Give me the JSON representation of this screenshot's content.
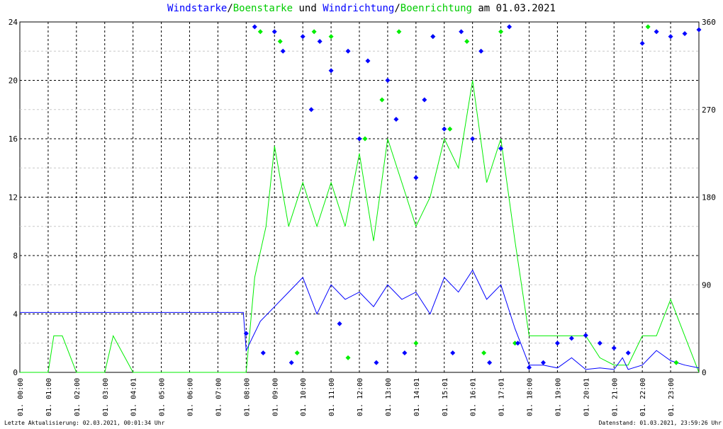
{
  "title": {
    "part1": "Windstarke",
    "sep1": "/",
    "part2": "Boenstarke",
    "mid": " und ",
    "part3": "Windrichtung",
    "sep2": "/",
    "part4": "Boenrichtung",
    "tail": " am 01.03.2021"
  },
  "colors": {
    "speed": "#0000ff",
    "gust": "#00ee00",
    "grid": "#000000",
    "dashed_grid": "#c8c8c8",
    "background": "#ffffff"
  },
  "footer": {
    "left": "Letzte Aktualisierung: 02.03.2021, 00:01:34 Uhr",
    "right": "Datenstand: 01.03.2021, 23:59:26 Uhr"
  },
  "chart_data": {
    "type": "line",
    "x_label_values": [
      "01. 00:00",
      "01. 01:00",
      "01. 02:00",
      "01. 03:00",
      "01. 04:01",
      "01. 05:00",
      "01. 06:00",
      "01. 07:00",
      "01. 08:00",
      "01. 09:00",
      "01. 10:00",
      "01. 11:00",
      "01. 12:00",
      "01. 13:00",
      "01. 14:01",
      "01. 15:01",
      "01. 16:01",
      "01. 17:01",
      "01. 18:00",
      "01. 19:00",
      "01. 20:01",
      "01. 21:00",
      "01. 22:00",
      "01. 23:00"
    ],
    "xlim_hours": [
      0,
      24
    ],
    "y_left_ticks": [
      0,
      4,
      8,
      12,
      16,
      20,
      24
    ],
    "y_left_lim": [
      0,
      24
    ],
    "y_right_ticks": [
      0,
      90,
      180,
      270,
      360
    ],
    "y_right_lim": [
      0,
      360
    ],
    "grid": true,
    "series": [
      {
        "name": "Windstarke",
        "axis": "left",
        "x_hours": [
          0,
          1,
          2,
          3,
          4,
          5,
          6,
          7,
          7.9,
          8.0,
          8.5,
          9,
          9.5,
          10,
          10.5,
          11,
          11.5,
          12,
          12.5,
          13,
          13.5,
          14,
          14.5,
          15,
          15.5,
          16,
          16.5,
          17,
          17.5,
          17.9,
          18,
          18.5,
          19,
          19.5,
          20,
          20.5,
          21,
          21.3,
          21.5,
          22,
          22.5,
          23,
          23.5,
          24
        ],
        "values": [
          4.1,
          4.1,
          4.1,
          4.1,
          4.1,
          4.1,
          4.1,
          4.1,
          4.1,
          1.5,
          3.5,
          4.5,
          5.5,
          6.5,
          4.0,
          6.0,
          5.0,
          5.5,
          4.5,
          6.0,
          5.0,
          5.5,
          4.0,
          6.5,
          5.5,
          7.0,
          5.0,
          6.0,
          3.0,
          1.0,
          0.5,
          0.5,
          0.3,
          1.0,
          0.2,
          0.3,
          0.2,
          1.0,
          0.2,
          0.5,
          1.5,
          0.8,
          0.5,
          0.3
        ]
      },
      {
        "name": "Boenstarke",
        "axis": "left",
        "x_hours": [
          0,
          1,
          1.2,
          1.5,
          2,
          3,
          3.3,
          4,
          5,
          6,
          7,
          8,
          8.3,
          8.7,
          9,
          9.5,
          10,
          10.5,
          11,
          11.5,
          12,
          12.5,
          13,
          13.5,
          14,
          14.5,
          15,
          15.5,
          16,
          16.5,
          17,
          17.5,
          18,
          18.5,
          19,
          19.5,
          20,
          20.5,
          21,
          21.5,
          22,
          22.5,
          23,
          23.5,
          24
        ],
        "values": [
          0,
          0,
          2.5,
          2.5,
          0,
          0,
          2.5,
          0,
          0,
          0,
          0,
          0,
          6.5,
          10.0,
          15.5,
          10.0,
          13.0,
          10.0,
          13.0,
          10.0,
          15.0,
          9.0,
          16.0,
          13.0,
          10.0,
          12.0,
          16.0,
          14.0,
          20.0,
          13.0,
          16.0,
          9.0,
          2.5,
          2.5,
          2.5,
          2.5,
          2.5,
          1.0,
          0.5,
          0.5,
          2.5,
          2.5,
          5.0,
          2.5,
          0
        ]
      },
      {
        "name": "Windrichtung",
        "axis": "right",
        "marker": "diamond",
        "x_hours": [
          8.0,
          8.3,
          8.6,
          9.0,
          9.3,
          9.6,
          10.0,
          10.3,
          10.6,
          11.0,
          11.3,
          11.6,
          12.0,
          12.3,
          12.6,
          13.0,
          13.3,
          13.6,
          14.0,
          14.3,
          14.6,
          15.0,
          15.3,
          15.6,
          16.0,
          16.3,
          16.6,
          17.0,
          17.3,
          17.6,
          18.0,
          18.5,
          19.0,
          19.5,
          20.0,
          20.5,
          21.0,
          21.5,
          22.0,
          22.5,
          23.0,
          23.5,
          24.0
        ],
        "values": [
          40,
          355,
          20,
          350,
          330,
          10,
          345,
          270,
          340,
          310,
          50,
          330,
          240,
          320,
          10,
          300,
          260,
          20,
          200,
          280,
          345,
          250,
          20,
          350,
          240,
          330,
          10,
          230,
          355,
          30,
          5,
          10,
          30,
          35,
          38,
          30,
          25,
          20,
          338,
          350,
          345,
          348,
          352
        ]
      },
      {
        "name": "Boenrichtung",
        "axis": "right",
        "marker": "diamond",
        "x_hours": [
          8.5,
          9.2,
          9.8,
          10.4,
          11.0,
          11.6,
          12.2,
          12.8,
          13.4,
          14.0,
          14.6,
          15.2,
          15.8,
          16.4,
          17.0,
          17.5,
          22.2,
          23.2
        ],
        "values": [
          350,
          340,
          20,
          350,
          345,
          15,
          240,
          280,
          350,
          30,
          345,
          250,
          340,
          20,
          350,
          30,
          355,
          10
        ]
      }
    ]
  }
}
